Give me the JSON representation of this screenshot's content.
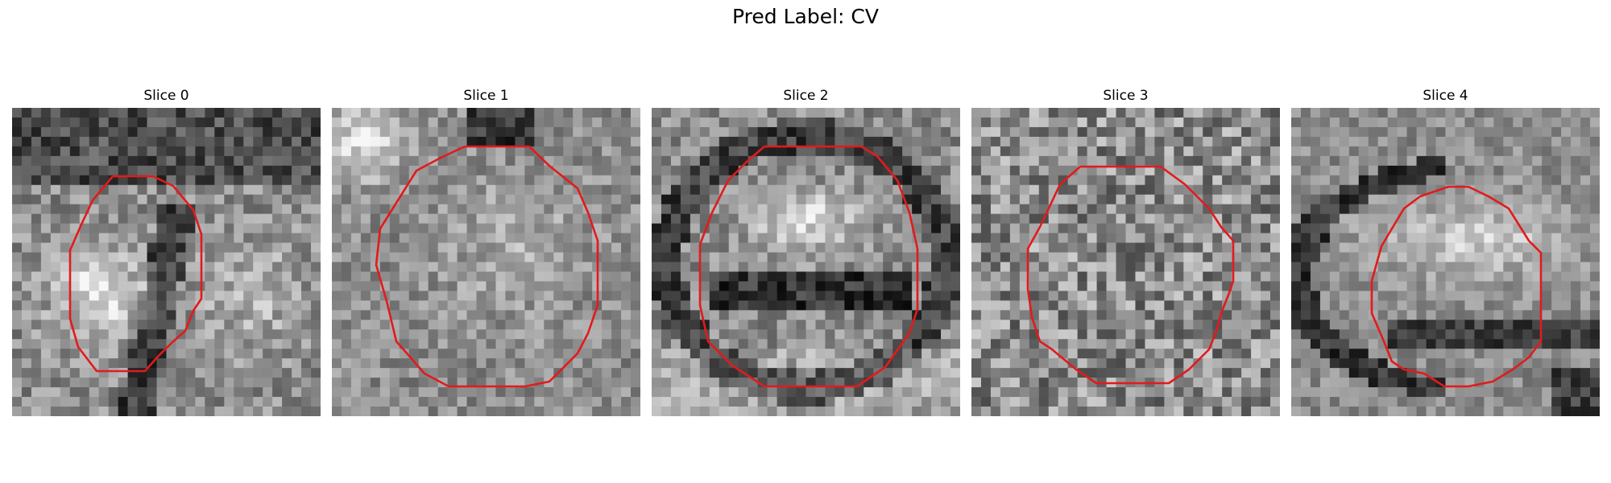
{
  "figure": {
    "title": "Pred Label: CV",
    "panels": [
      {
        "title": "Slice 0"
      },
      {
        "title": "Slice 1"
      },
      {
        "title": "Slice 2"
      },
      {
        "title": "Slice 3"
      },
      {
        "title": "Slice 4"
      }
    ],
    "contour_color": "#e31a1c",
    "colormap": "gray"
  }
}
